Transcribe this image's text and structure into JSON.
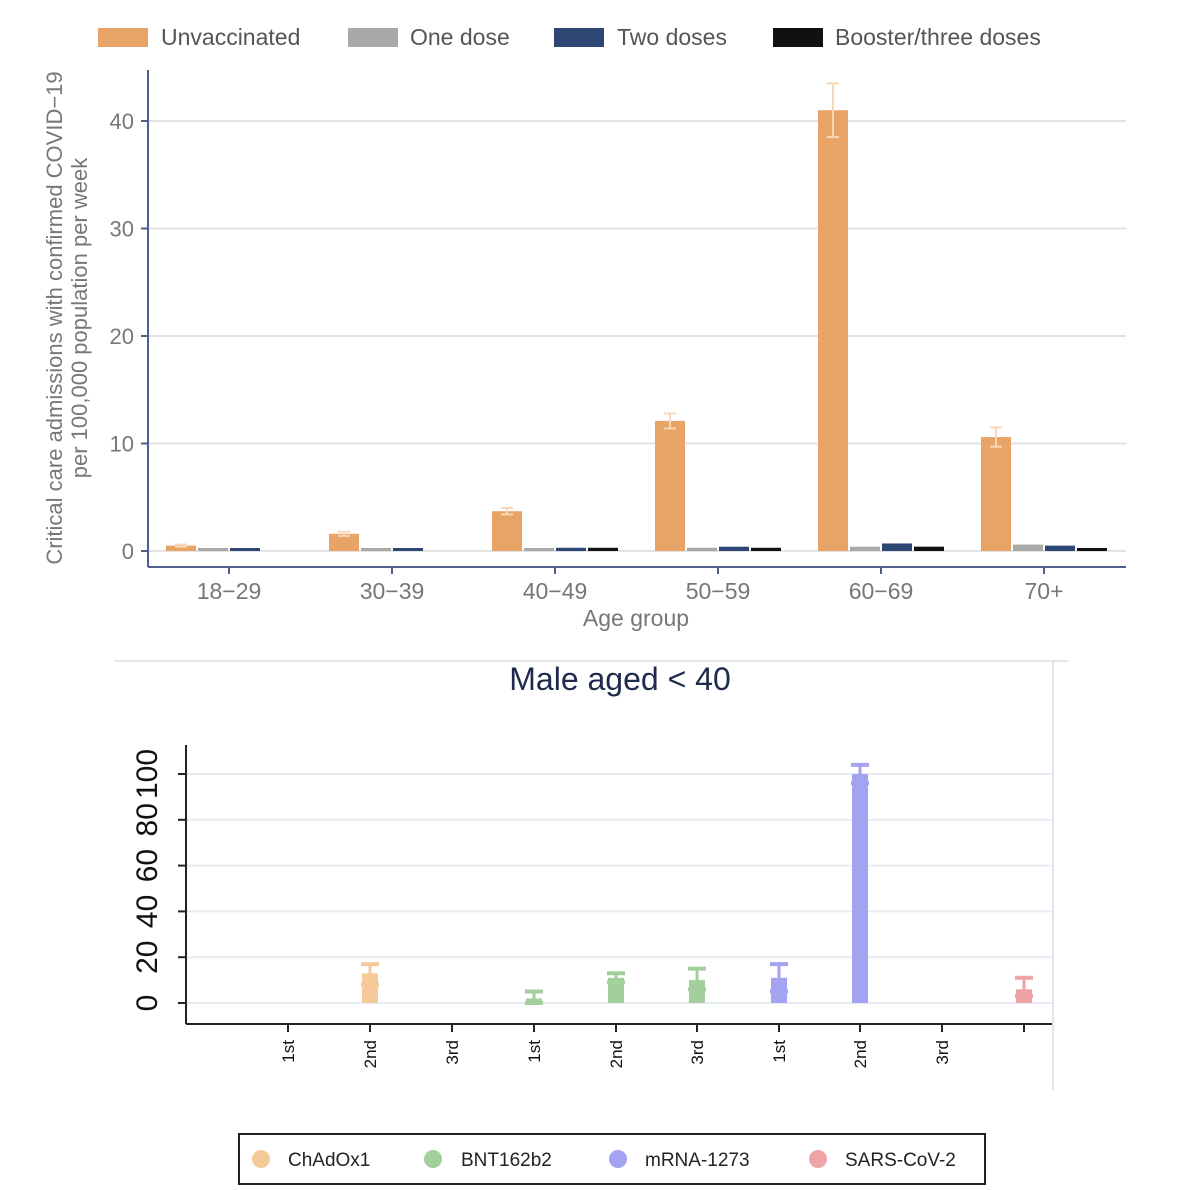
{
  "chart_data": [
    {
      "type": "bar",
      "title": "",
      "xlabel": "Age group",
      "ylabel": "Critical care admissions with confirmed COVID−19 per 100,000 population per week",
      "ylabel_lines": [
        "Critical care admissions with confirmed COVID−19",
        "per 100,000 population per week"
      ],
      "ylim": [
        0,
        44
      ],
      "yticks": [
        "0",
        "10",
        "20",
        "30",
        "40"
      ],
      "grid": true,
      "legend_position": "top",
      "error_bars": true,
      "categories": [
        "18−29",
        "30−39",
        "40−49",
        "50−59",
        "60−69",
        "70+"
      ],
      "series": [
        {
          "name": "Unvaccinated",
          "color": "#E8A366",
          "values": [
            0.5,
            1.6,
            3.7,
            12.1,
            41.0,
            10.6
          ],
          "ci_low": [
            0.4,
            1.4,
            3.4,
            11.4,
            38.5,
            9.7
          ],
          "ci_high": [
            0.6,
            1.8,
            4.0,
            12.8,
            43.5,
            11.5
          ]
        },
        {
          "name": "One dose",
          "color": "#A9A9A9",
          "values": [
            0.1,
            0.1,
            0.2,
            0.3,
            0.4,
            0.6
          ],
          "ci_low": [
            0.05,
            0.05,
            0.15,
            0.2,
            0.3,
            0.4
          ],
          "ci_high": [
            0.15,
            0.15,
            0.3,
            0.4,
            0.6,
            0.8
          ]
        },
        {
          "name": "Two doses",
          "color": "#2E4674",
          "values": [
            0.1,
            0.1,
            0.3,
            0.4,
            0.7,
            0.5
          ],
          "ci_low": [
            0.05,
            0.05,
            0.2,
            0.3,
            0.6,
            0.4
          ],
          "ci_high": [
            0.15,
            0.15,
            0.35,
            0.5,
            0.8,
            0.6
          ]
        },
        {
          "name": "Booster/three doses",
          "color": "#111111",
          "values": [
            null,
            null,
            0.3,
            0.3,
            0.4,
            0.2
          ],
          "ci_low": [
            null,
            null,
            0.2,
            0.2,
            0.3,
            0.15
          ],
          "ci_high": [
            null,
            null,
            0.5,
            0.4,
            0.5,
            0.3
          ]
        }
      ]
    },
    {
      "type": "bar",
      "title": "Male aged < 40",
      "xlabel": "",
      "ylabel": "",
      "ylim": [
        0,
        110
      ],
      "yticks": [
        "0",
        "20",
        "40",
        "60",
        "80",
        "100"
      ],
      "grid": true,
      "legend_position": "bottom",
      "error_bars": true,
      "x_labels": [
        "1st",
        "2nd",
        "3rd",
        "1st",
        "2nd",
        "3rd",
        "1st",
        "2nd",
        "3rd",
        ""
      ],
      "series": [
        {
          "name": "ChAdOx1",
          "color": "#F6C99A",
          "values": [
            null,
            13,
            null,
            null,
            null,
            null,
            null,
            null,
            null,
            null
          ],
          "ci_low": [
            null,
            8,
            null,
            null,
            null,
            null,
            null,
            null,
            null,
            null
          ],
          "ci_high": [
            null,
            17,
            null,
            null,
            null,
            null,
            null,
            null,
            null,
            null
          ]
        },
        {
          "name": "BNT162b2",
          "color": "#A3CF9C",
          "values": [
            null,
            null,
            null,
            2,
            11,
            10,
            null,
            null,
            null,
            null
          ],
          "ci_low": [
            null,
            null,
            null,
            0,
            9,
            6,
            null,
            null,
            null,
            null
          ],
          "ci_high": [
            null,
            null,
            null,
            5,
            13,
            15,
            null,
            null,
            null,
            null
          ]
        },
        {
          "name": "mRNA-1273",
          "color": "#A3A3F2",
          "values": [
            null,
            null,
            null,
            null,
            null,
            null,
            11,
            100,
            null,
            null
          ],
          "ci_low": [
            null,
            null,
            null,
            null,
            null,
            null,
            5,
            96,
            null,
            null
          ],
          "ci_high": [
            null,
            null,
            null,
            null,
            null,
            null,
            17,
            104,
            null,
            null
          ]
        },
        {
          "name": "SARS-CoV-2",
          "color": "#F0A3A6",
          "values": [
            null,
            null,
            null,
            null,
            null,
            null,
            null,
            null,
            null,
            6
          ],
          "ci_low": [
            null,
            null,
            null,
            null,
            null,
            null,
            null,
            null,
            null,
            3
          ],
          "ci_high": [
            null,
            null,
            null,
            null,
            null,
            null,
            null,
            null,
            null,
            11
          ]
        }
      ]
    }
  ]
}
